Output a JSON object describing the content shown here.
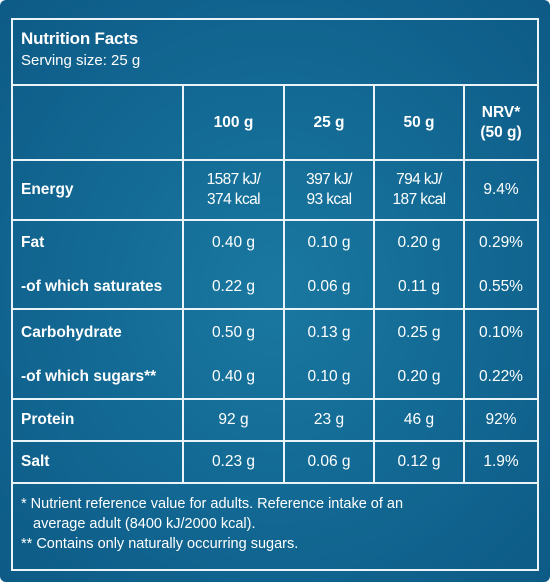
{
  "header": {
    "title": "Nutrition Facts",
    "serving": "Serving size: 25 g"
  },
  "table": {
    "columns": [
      "100 g",
      "25 g",
      "50 g",
      "NRV*",
      "(50 g)"
    ],
    "rows": [
      {
        "label": "Energy",
        "c100_line1": "1587 kJ/",
        "c100_line2": "374 kcal",
        "c25_line1": "397 kJ/",
        "c25_line2": "93 kcal",
        "c50_line1": "794 kJ/",
        "c50_line2": "187 kcal",
        "nrv": "9.4%"
      },
      {
        "label": "Fat",
        "c100": "0.40 g",
        "c25": "0.10 g",
        "c50": "0.20 g",
        "nrv": "0.29%"
      },
      {
        "label": "-of which saturates",
        "c100": "0.22 g",
        "c25": "0.06 g",
        "c50": "0.11 g",
        "nrv": "0.55%"
      },
      {
        "label": "Carbohydrate",
        "c100": "0.50 g",
        "c25": "0.13 g",
        "c50": "0.25 g",
        "nrv": "0.10%"
      },
      {
        "label": "-of which sugars**",
        "c100": "0.40 g",
        "c25": "0.10 g",
        "c50": "0.20 g",
        "nrv": "0.22%"
      },
      {
        "label": "Protein",
        "c100": "92 g",
        "c25": "23 g",
        "c50": "46 g",
        "nrv": "92%"
      },
      {
        "label": "Salt",
        "c100": "0.23 g",
        "c25": "0.06 g",
        "c50": "0.12 g",
        "nrv": "1.9%"
      }
    ]
  },
  "footnotes": {
    "line1": "* Nutrient reference value for adults. Reference intake of an",
    "line2": "average adult (8400 kJ/2000 kcal).",
    "line3": "** Contains only naturally occurring sugars."
  },
  "colors": {
    "background": "#136b95",
    "lines": "#e9f3f8",
    "text": "#ffffff"
  }
}
